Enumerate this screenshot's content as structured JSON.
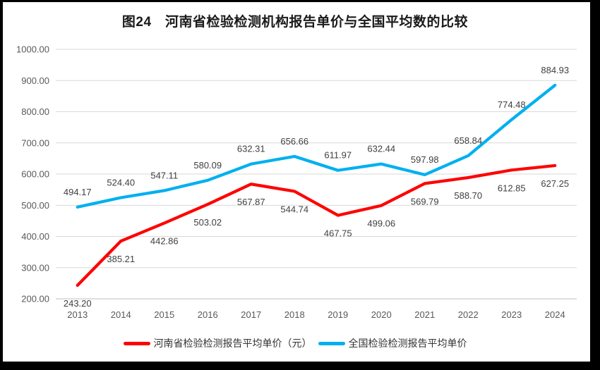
{
  "title": "图24　河南省检验检测机构报告单价与全国平均数的比较",
  "chart_data": {
    "type": "line",
    "title": "图24　河南省检验检测机构报告单价与全国平均数的比较",
    "categories": [
      "2013",
      "2014",
      "2015",
      "2016",
      "2017",
      "2018",
      "2019",
      "2020",
      "2021",
      "2022",
      "2023",
      "2024"
    ],
    "series": [
      {
        "id": "henan",
        "name": "河南省检验检测报告平均单价（元）",
        "color": "#FF0000",
        "label_position": "below",
        "values": [
          243.2,
          385.21,
          442.86,
          503.02,
          567.87,
          544.74,
          467.75,
          499.06,
          569.79,
          588.7,
          612.85,
          627.25
        ],
        "labels": [
          "243.20",
          "385.21",
          "442.86",
          "503.02",
          "567.87",
          "544.74",
          "467.75",
          "499.06",
          "569.79",
          "588.70",
          "612.85",
          "627.25"
        ]
      },
      {
        "id": "national",
        "name": "全国检验检测报告平均单价",
        "color": "#00B0F0",
        "label_position": "above",
        "values": [
          494.17,
          524.4,
          547.11,
          580.09,
          632.31,
          656.66,
          611.97,
          632.44,
          597.98,
          658.84,
          774.48,
          884.93
        ],
        "labels": [
          "494.17",
          "524.40",
          "547.11",
          "580.09",
          "632.31",
          "656.66",
          "611.97",
          "632.44",
          "597.98",
          "658.84",
          "774.48",
          "884.93"
        ]
      }
    ],
    "ylim": [
      200,
      1000
    ],
    "ytick_step": 100,
    "ytick_labels": [
      "200.00",
      "300.00",
      "400.00",
      "500.00",
      "600.00",
      "700.00",
      "800.00",
      "900.00",
      "1000.00"
    ],
    "xlabel": "",
    "ylabel": "",
    "grid": true,
    "legend_position": "bottom",
    "colors": {
      "grid": "#D9D9D9",
      "axis_line": "#BFBFBF",
      "axis_text": "#595959",
      "data_label_text": "#404040",
      "title_text": "#1A1A1A",
      "frame": "#000000"
    }
  }
}
